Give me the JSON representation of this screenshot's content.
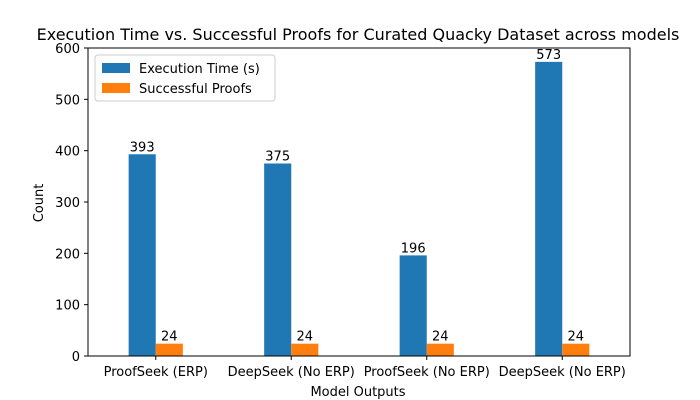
{
  "chart_data": {
    "type": "bar",
    "title": "Execution Time vs. Successful Proofs for Curated Quacky Dataset across models",
    "xlabel": "Model Outputs",
    "ylabel": "Count",
    "categories": [
      "ProofSeek (ERP)",
      "DeepSeek (No ERP)",
      "ProofSeek (No ERP)",
      "DeepSeek (No ERP)"
    ],
    "series": [
      {
        "name": "Execution Time (s)",
        "color": "#1f77b4",
        "values": [
          393,
          375,
          196,
          573
        ]
      },
      {
        "name": "Successful Proofs",
        "color": "#ff7f0e",
        "values": [
          24,
          24,
          24,
          24
        ]
      }
    ],
    "ylim": [
      0,
      600
    ],
    "yticks": [
      0,
      100,
      200,
      300,
      400,
      500,
      600
    ],
    "data_labels": true,
    "grid": false,
    "legend_position": "top-left"
  }
}
